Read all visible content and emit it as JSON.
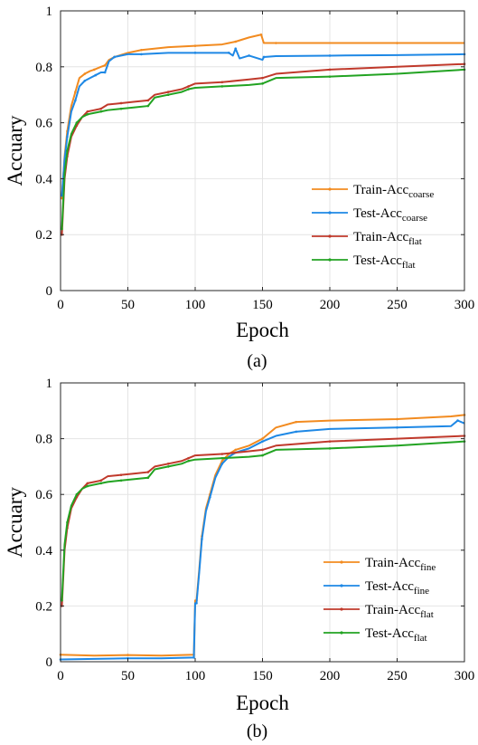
{
  "figure": {
    "panels": [
      "(a)",
      "(b)"
    ]
  },
  "colors": {
    "train_coarse": "#f28b20",
    "test_coarse": "#1e88e5",
    "train_fine": "#f28b20",
    "test_fine": "#1e88e5",
    "train_flat": "#c0392b",
    "test_flat": "#22a322",
    "grid": "#e4e4e4",
    "axis": "#262626"
  },
  "chart_data": [
    {
      "type": "line",
      "caption": "(a)",
      "xlabel": "Epoch",
      "ylabel": "Accuary",
      "xlim": [
        0,
        300
      ],
      "ylim": [
        0,
        1
      ],
      "xticks": [
        0,
        50,
        100,
        150,
        200,
        250,
        300
      ],
      "yticks": [
        0,
        0.2,
        0.4,
        0.6,
        0.8,
        1
      ],
      "grid": true,
      "legend_position": "bottom-right",
      "series": [
        {
          "name": "Train-Acc",
          "subscript": "coarse",
          "color_key": "train_coarse",
          "x": [
            1,
            3,
            5,
            8,
            11,
            14,
            18,
            22,
            25,
            30,
            33,
            36,
            40,
            50,
            60,
            80,
            100,
            120,
            130,
            140,
            149,
            151,
            160,
            200,
            250,
            300
          ],
          "y": [
            0.33,
            0.48,
            0.57,
            0.66,
            0.71,
            0.76,
            0.775,
            0.785,
            0.79,
            0.8,
            0.805,
            0.825,
            0.835,
            0.85,
            0.86,
            0.87,
            0.875,
            0.88,
            0.89,
            0.905,
            0.915,
            0.885,
            0.885,
            0.885,
            0.885,
            0.885
          ]
        },
        {
          "name": "Test-Acc",
          "subscript": "coarse",
          "color_key": "test_coarse",
          "x": [
            1,
            3,
            5,
            8,
            11,
            14,
            18,
            22,
            26,
            30,
            33,
            36,
            40,
            50,
            60,
            80,
            100,
            120,
            125,
            128,
            130,
            133,
            140,
            150,
            151,
            160,
            200,
            250,
            300
          ],
          "y": [
            0.34,
            0.47,
            0.55,
            0.64,
            0.68,
            0.73,
            0.75,
            0.76,
            0.77,
            0.78,
            0.78,
            0.82,
            0.835,
            0.845,
            0.845,
            0.85,
            0.85,
            0.85,
            0.85,
            0.84,
            0.865,
            0.83,
            0.84,
            0.825,
            0.835,
            0.838,
            0.84,
            0.842,
            0.845
          ]
        },
        {
          "name": "Train-Acc",
          "subscript": "flat",
          "color_key": "train_flat",
          "x": [
            1,
            3,
            5,
            8,
            12,
            16,
            20,
            25,
            30,
            35,
            45,
            55,
            65,
            70,
            80,
            90,
            95,
            100,
            120,
            140,
            150,
            160,
            200,
            250,
            300
          ],
          "y": [
            0.2,
            0.4,
            0.48,
            0.55,
            0.59,
            0.62,
            0.64,
            0.645,
            0.65,
            0.665,
            0.67,
            0.675,
            0.68,
            0.7,
            0.71,
            0.72,
            0.73,
            0.74,
            0.745,
            0.755,
            0.76,
            0.775,
            0.79,
            0.8,
            0.81
          ]
        },
        {
          "name": "Test-Acc",
          "subscript": "flat",
          "color_key": "test_flat",
          "x": [
            1,
            3,
            5,
            8,
            12,
            16,
            20,
            25,
            30,
            35,
            45,
            55,
            65,
            70,
            80,
            90,
            95,
            100,
            120,
            140,
            150,
            160,
            200,
            250,
            300
          ],
          "y": [
            0.22,
            0.42,
            0.5,
            0.56,
            0.6,
            0.62,
            0.63,
            0.635,
            0.64,
            0.645,
            0.65,
            0.655,
            0.66,
            0.69,
            0.7,
            0.71,
            0.72,
            0.725,
            0.73,
            0.735,
            0.74,
            0.76,
            0.765,
            0.775,
            0.79
          ]
        }
      ]
    },
    {
      "type": "line",
      "caption": "(b)",
      "xlabel": "Epoch",
      "ylabel": "Accuary",
      "xlim": [
        0,
        300
      ],
      "ylim": [
        0,
        1
      ],
      "xticks": [
        0,
        50,
        100,
        150,
        200,
        250,
        300
      ],
      "yticks": [
        0,
        0.2,
        0.4,
        0.6,
        0.8,
        1
      ],
      "grid": true,
      "legend_position": "bottom-right",
      "series": [
        {
          "name": "Train-Acc",
          "subscript": "fine",
          "color_key": "train_fine",
          "x": [
            0,
            25,
            50,
            75,
            99,
            100,
            101,
            103,
            105,
            108,
            111,
            115,
            120,
            125,
            130,
            140,
            150,
            160,
            175,
            200,
            250,
            290,
            300
          ],
          "y": [
            0.025,
            0.022,
            0.024,
            0.022,
            0.025,
            0.22,
            0.22,
            0.33,
            0.45,
            0.55,
            0.6,
            0.67,
            0.72,
            0.745,
            0.76,
            0.775,
            0.8,
            0.84,
            0.86,
            0.865,
            0.87,
            0.88,
            0.885
          ]
        },
        {
          "name": "Test-Acc",
          "subscript": "fine",
          "color_key": "test_fine",
          "x": [
            0,
            25,
            50,
            75,
            99,
            100,
            101,
            103,
            105,
            108,
            111,
            115,
            120,
            125,
            130,
            140,
            150,
            160,
            175,
            200,
            250,
            290,
            295,
            300
          ],
          "y": [
            0.008,
            0.01,
            0.012,
            0.012,
            0.015,
            0.21,
            0.21,
            0.32,
            0.44,
            0.54,
            0.59,
            0.66,
            0.71,
            0.735,
            0.75,
            0.765,
            0.79,
            0.81,
            0.825,
            0.835,
            0.84,
            0.845,
            0.865,
            0.855
          ]
        },
        {
          "name": "Train-Acc",
          "subscript": "flat",
          "color_key": "train_flat",
          "x": [
            1,
            3,
            5,
            8,
            12,
            16,
            20,
            25,
            30,
            35,
            45,
            55,
            65,
            70,
            80,
            90,
            95,
            100,
            120,
            140,
            150,
            160,
            200,
            250,
            300
          ],
          "y": [
            0.2,
            0.4,
            0.48,
            0.55,
            0.59,
            0.62,
            0.64,
            0.645,
            0.65,
            0.665,
            0.67,
            0.675,
            0.68,
            0.7,
            0.71,
            0.72,
            0.73,
            0.74,
            0.745,
            0.755,
            0.76,
            0.775,
            0.79,
            0.8,
            0.81
          ]
        },
        {
          "name": "Test-Acc",
          "subscript": "flat",
          "color_key": "test_flat",
          "x": [
            1,
            3,
            5,
            8,
            12,
            16,
            20,
            25,
            30,
            35,
            45,
            55,
            65,
            70,
            80,
            90,
            95,
            100,
            120,
            140,
            150,
            160,
            200,
            250,
            300
          ],
          "y": [
            0.22,
            0.42,
            0.5,
            0.56,
            0.6,
            0.62,
            0.63,
            0.635,
            0.64,
            0.645,
            0.65,
            0.655,
            0.66,
            0.69,
            0.7,
            0.71,
            0.72,
            0.725,
            0.73,
            0.735,
            0.74,
            0.76,
            0.765,
            0.775,
            0.79
          ]
        }
      ]
    }
  ]
}
